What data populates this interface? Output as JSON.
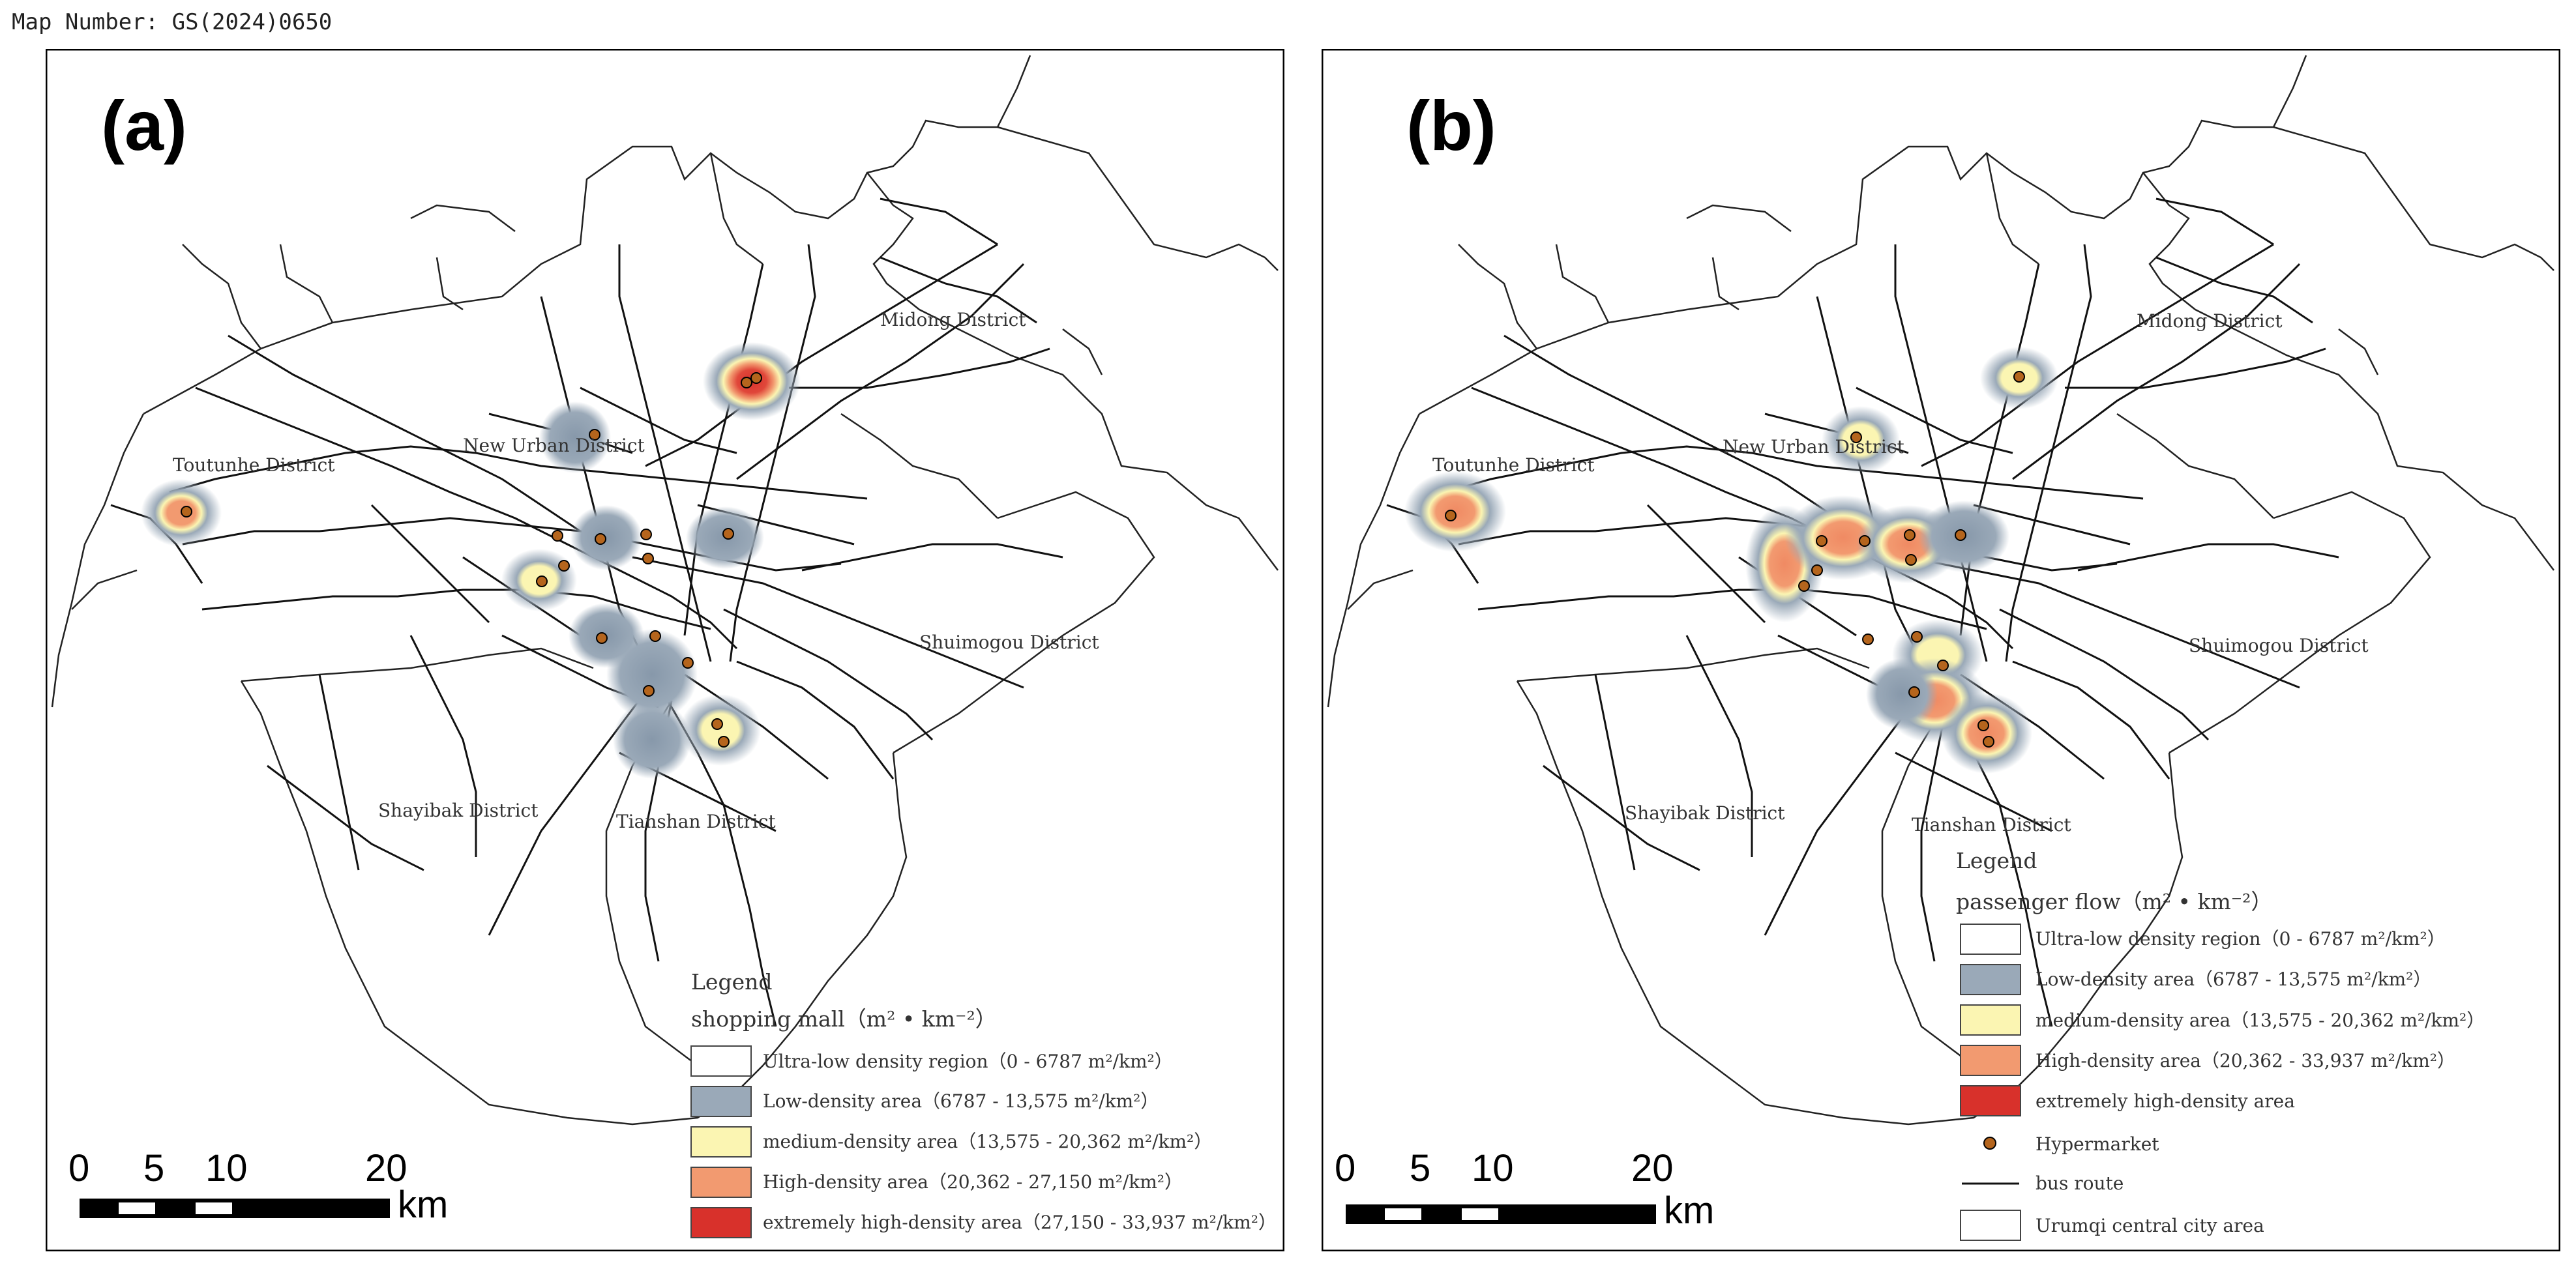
{
  "map_number": "Map Number: GS(2024)0650",
  "colors": {
    "ultra_low": "#ffffff",
    "low": "#9aa9b8",
    "medium": "#fbf5b2",
    "high": "#f29a70",
    "extreme": "#d8312b",
    "marker": "#b5651d",
    "route": "#111111"
  },
  "panels": [
    {
      "label": "(a)",
      "districts": [
        "Midong District",
        "New Urban District",
        "Toutunhe District",
        "Shuimogou District",
        "Shayibak District",
        "Tianshan District"
      ],
      "legend": {
        "title": "Legend",
        "subtitle": "shopping mall（m² • km⁻²）",
        "items": [
          {
            "label": "Ultra-low density region（0 - 6787 m²/km²）",
            "color": "#ffffff"
          },
          {
            "label": "Low-density area（6787 - 13,575 m²/km²）",
            "color": "#9aa9b8"
          },
          {
            "label": "medium-density area（13,575 - 20,362 m²/km²）",
            "color": "#fbf5b2"
          },
          {
            "label": "High-density area（20,362 - 27,150 m²/km²）",
            "color": "#f29a70"
          },
          {
            "label": "extremely high-density area（27,150 - 33,937 m²/km²）",
            "color": "#d8312b"
          }
        ]
      },
      "scale": {
        "ticks": [
          "0",
          "5",
          "10",
          "20"
        ],
        "unit": "km"
      }
    },
    {
      "label": "(b)",
      "districts": [
        "Midong District",
        "New Urban District",
        "Toutunhe District",
        "Shuimogou District",
        "Shayibak District",
        "Tianshan District"
      ],
      "legend": {
        "title": "Legend",
        "subtitle": "passenger flow（m² • km⁻²）",
        "items": [
          {
            "label": "Ultra-low density region（0 - 6787 m²/km²）",
            "color": "#ffffff",
            "kind": "box"
          },
          {
            "label": "Low-density area（6787 - 13,575 m²/km²）",
            "color": "#9aa9b8",
            "kind": "box"
          },
          {
            "label": "medium-density area（13,575 - 20,362 m²/km²）",
            "color": "#fbf5b2",
            "kind": "box"
          },
          {
            "label": "High-density area（20,362 - 33,937 m²/km²）",
            "color": "#f29a70",
            "kind": "box"
          },
          {
            "label": "extremely high-density area",
            "color": "#d8312b",
            "kind": "box"
          },
          {
            "label": "Hypermarket",
            "color": "#b5651d",
            "kind": "dot"
          },
          {
            "label": "bus route",
            "color": "#111111",
            "kind": "line"
          },
          {
            "label": "Urumqi central city area",
            "color": "#ffffff",
            "kind": "box"
          }
        ]
      },
      "scale": {
        "ticks": [
          "0",
          "5",
          "10",
          "20"
        ],
        "unit": "km"
      }
    }
  ]
}
